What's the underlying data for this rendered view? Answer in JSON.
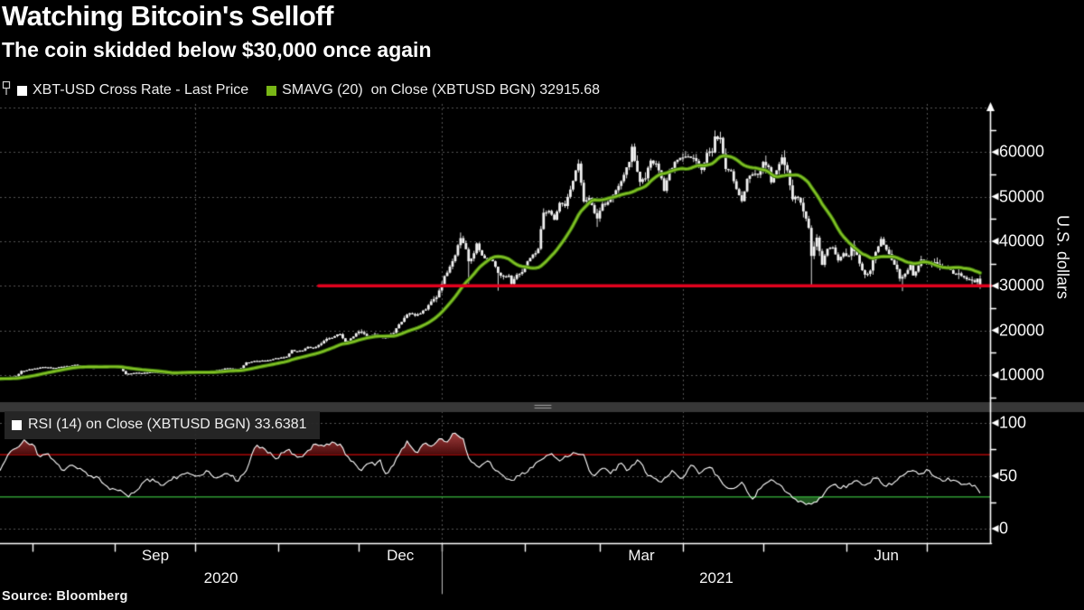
{
  "header": {
    "title": "Watching Bitcoin's Selloff",
    "subtitle": "The coin skidded below $30,000 once again"
  },
  "legend_main": {
    "series1": {
      "swatch_color": "#ffffff",
      "label": "XBT-USD Cross Rate - Last Price"
    },
    "series2": {
      "swatch_color": "#79b616",
      "label": "SMAVG (20)  on Close (XBTUSD BGN) 32915.68"
    }
  },
  "legend_rsi": {
    "swatch_color": "#ffffff",
    "label": "RSI (14)  on Close (XBTUSD BGN) 33.6381"
  },
  "y_axis": {
    "title": "U.S. dollars"
  },
  "source": "Source:  Bloomberg",
  "colors": {
    "background": "#000000",
    "candle": "#f2f2f2",
    "sma_core": "#85c426",
    "sma_edge": "#3f7a0e",
    "support_line": "#e0021e",
    "grid": "#555555",
    "axis": "#ffffff",
    "rsi_line": "#ffffff",
    "rsi_overbought_line": "#cf0a0a",
    "rsi_oversold_line": "#38b73c",
    "rsi_fill_top": "#c65252",
    "rsi_fill_bottom": "#4a0c0c",
    "rsi_fill_green": "rgba(60,170,60,0.5)",
    "separator": "#373737",
    "separator_grip": "#a0a0a0",
    "year_divider": "#c0c0c0"
  },
  "chart_data": [
    {
      "type": "candlestick",
      "name": "XBT-USD Cross Rate - Last Price",
      "x_range": [
        "2020-07-20",
        "2021-07-21"
      ],
      "ylabel": "U.S. dollars",
      "ylim": [
        3900,
        70800
      ],
      "y_ticks": [
        10000,
        20000,
        30000,
        40000,
        50000,
        60000
      ],
      "grid": "dotted",
      "support_line": {
        "value": 30000,
        "start_day": 119
      },
      "sma": {
        "period": 20,
        "last_value": 32915.68
      },
      "close_anchors": [
        [
          -20,
          9150
        ],
        [
          -10,
          9180
        ],
        [
          -3,
          9120
        ],
        [
          0,
          9160
        ],
        [
          4,
          9550
        ],
        [
          6,
          9700
        ],
        [
          8,
          10900
        ],
        [
          10,
          11050
        ],
        [
          12,
          11300
        ],
        [
          16,
          11780
        ],
        [
          20,
          11600
        ],
        [
          24,
          11850
        ],
        [
          28,
          12280
        ],
        [
          31,
          11900
        ],
        [
          34,
          11600
        ],
        [
          38,
          11700
        ],
        [
          43,
          11930
        ],
        [
          45,
          11400
        ],
        [
          47,
          10150
        ],
        [
          50,
          10450
        ],
        [
          53,
          10340
        ],
        [
          57,
          10700
        ],
        [
          61,
          10550
        ],
        [
          64,
          10250
        ],
        [
          67,
          10750
        ],
        [
          70,
          10840
        ],
        [
          73,
          10620
        ],
        [
          77,
          10570
        ],
        [
          80,
          10930
        ],
        [
          84,
          11420
        ],
        [
          88,
          11360
        ],
        [
          90,
          11500
        ],
        [
          92,
          12820
        ],
        [
          94,
          12980
        ],
        [
          97,
          13150
        ],
        [
          100,
          13270
        ],
        [
          102,
          13560
        ],
        [
          104,
          13750
        ],
        [
          107,
          14100
        ],
        [
          109,
          15600
        ],
        [
          111,
          15300
        ],
        [
          113,
          15480
        ],
        [
          115,
          16300
        ],
        [
          117,
          16070
        ],
        [
          119,
          16720
        ],
        [
          121,
          17650
        ],
        [
          123,
          18250
        ],
        [
          125,
          18700
        ],
        [
          127,
          19150
        ],
        [
          129,
          17150
        ],
        [
          131,
          18200
        ],
        [
          134,
          19700
        ],
        [
          136,
          19200
        ],
        [
          138,
          18650
        ],
        [
          140,
          19170
        ],
        [
          143,
          18250
        ],
        [
          145,
          18800
        ],
        [
          147,
          19450
        ],
        [
          149,
          21350
        ],
        [
          151,
          22800
        ],
        [
          153,
          23850
        ],
        [
          155,
          23300
        ],
        [
          157,
          23800
        ],
        [
          159,
          24700
        ],
        [
          161,
          26500
        ],
        [
          163,
          27400
        ],
        [
          164,
          28950
        ],
        [
          166,
          32200
        ],
        [
          168,
          34300
        ],
        [
          170,
          36850
        ],
        [
          172,
          40700
        ],
        [
          174,
          38200
        ],
        [
          175,
          35500
        ],
        [
          177,
          37300
        ],
        [
          178,
          39500
        ],
        [
          180,
          36800
        ],
        [
          182,
          36000
        ],
        [
          184,
          35500
        ],
        [
          186,
          32900
        ],
        [
          188,
          32100
        ],
        [
          190,
          32300
        ],
        [
          191,
          30400
        ],
        [
          193,
          32500
        ],
        [
          195,
          33100
        ],
        [
          197,
          35500
        ],
        [
          199,
          37000
        ],
        [
          201,
          38300
        ],
        [
          203,
          46400
        ],
        [
          205,
          46800
        ],
        [
          207,
          44800
        ],
        [
          209,
          48600
        ],
        [
          211,
          47900
        ],
        [
          213,
          51600
        ],
        [
          215,
          55900
        ],
        [
          216,
          57400
        ],
        [
          218,
          48900
        ],
        [
          220,
          49700
        ],
        [
          222,
          46300
        ],
        [
          223,
          45100
        ],
        [
          225,
          48400
        ],
        [
          227,
          48800
        ],
        [
          229,
          50400
        ],
        [
          231,
          52400
        ],
        [
          233,
          54900
        ],
        [
          235,
          57800
        ],
        [
          236,
          61200
        ],
        [
          238,
          55600
        ],
        [
          239,
          53300
        ],
        [
          241,
          54100
        ],
        [
          243,
          58100
        ],
        [
          245,
          57400
        ],
        [
          247,
          54100
        ],
        [
          248,
          51300
        ],
        [
          250,
          55800
        ],
        [
          252,
          57800
        ],
        [
          254,
          58700
        ],
        [
          256,
          59000
        ],
        [
          258,
          58700
        ],
        [
          260,
          58000
        ],
        [
          262,
          56000
        ],
        [
          264,
          59800
        ],
        [
          266,
          59900
        ],
        [
          267,
          63500
        ],
        [
          269,
          63200
        ],
        [
          271,
          56200
        ],
        [
          273,
          55700
        ],
        [
          275,
          51700
        ],
        [
          277,
          49000
        ],
        [
          279,
          54000
        ],
        [
          281,
          55000
        ],
        [
          283,
          54900
        ],
        [
          285,
          57800
        ],
        [
          287,
          56600
        ],
        [
          288,
          53200
        ],
        [
          290,
          55900
        ],
        [
          292,
          58800
        ],
        [
          294,
          55900
        ],
        [
          296,
          49400
        ],
        [
          298,
          49700
        ],
        [
          300,
          46700
        ],
        [
          302,
          43000
        ],
        [
          303,
          36700
        ],
        [
          305,
          40800
        ],
        [
          307,
          34700
        ],
        [
          309,
          38300
        ],
        [
          311,
          38600
        ],
        [
          313,
          35700
        ],
        [
          315,
          37300
        ],
        [
          317,
          36700
        ],
        [
          318,
          39200
        ],
        [
          320,
          36900
        ],
        [
          322,
          33500
        ],
        [
          323,
          32500
        ],
        [
          325,
          33400
        ],
        [
          327,
          37600
        ],
        [
          329,
          40500
        ],
        [
          331,
          38100
        ],
        [
          333,
          35800
        ],
        [
          335,
          33700
        ],
        [
          336,
          31600
        ],
        [
          338,
          32700
        ],
        [
          340,
          34700
        ],
        [
          341,
          32300
        ],
        [
          343,
          34500
        ],
        [
          344,
          35900
        ],
        [
          346,
          35000
        ],
        [
          348,
          34600
        ],
        [
          349,
          35300
        ],
        [
          351,
          33900
        ],
        [
          353,
          34200
        ],
        [
          354,
          33800
        ],
        [
          356,
          32700
        ],
        [
          358,
          32800
        ],
        [
          360,
          31900
        ],
        [
          362,
          31400
        ],
        [
          364,
          30800
        ],
        [
          365,
          31600
        ],
        [
          366,
          29750
        ]
      ],
      "wick_extremes": {
        "highs": [
          [
            172,
            41950
          ],
          [
            216,
            58350
          ],
          [
            236,
            61800
          ],
          [
            267,
            64850
          ],
          [
            292,
            59500
          ]
        ],
        "lows": [
          [
            175,
            30500
          ],
          [
            186,
            28900
          ],
          [
            223,
            43200
          ],
          [
            303,
            30000
          ],
          [
            337,
            28800
          ],
          [
            366,
            29300
          ]
        ]
      }
    },
    {
      "type": "line",
      "name": "RSI (14) on Close",
      "ylim": [
        0,
        100
      ],
      "y_ticks": [
        0,
        50,
        100
      ],
      "overbought": 70,
      "oversold": 30,
      "last_value": 33.6381,
      "points": [
        [
          0,
          55
        ],
        [
          3,
          70
        ],
        [
          6,
          76
        ],
        [
          9,
          84
        ],
        [
          12,
          80
        ],
        [
          15,
          68
        ],
        [
          18,
          71
        ],
        [
          21,
          62
        ],
        [
          24,
          55
        ],
        [
          27,
          60
        ],
        [
          30,
          57
        ],
        [
          34,
          50
        ],
        [
          37,
          48
        ],
        [
          40,
          40
        ],
        [
          44,
          36
        ],
        [
          48,
          30
        ],
        [
          51,
          36
        ],
        [
          54,
          45
        ],
        [
          57,
          47
        ],
        [
          61,
          41
        ],
        [
          64,
          46
        ],
        [
          67,
          50
        ],
        [
          70,
          53
        ],
        [
          74,
          50
        ],
        [
          78,
          54
        ],
        [
          81,
          48
        ],
        [
          85,
          52
        ],
        [
          89,
          45
        ],
        [
          92,
          55
        ],
        [
          94,
          70
        ],
        [
          96,
          79
        ],
        [
          99,
          75
        ],
        [
          101,
          72
        ],
        [
          103,
          66
        ],
        [
          106,
          72
        ],
        [
          108,
          75
        ],
        [
          110,
          70
        ],
        [
          112,
          68
        ],
        [
          115,
          74
        ],
        [
          118,
          80
        ],
        [
          121,
          78
        ],
        [
          124,
          82
        ],
        [
          127,
          80
        ],
        [
          129,
          70
        ],
        [
          131,
          64
        ],
        [
          133,
          60
        ],
        [
          135,
          55
        ],
        [
          138,
          62
        ],
        [
          140,
          60
        ],
        [
          142,
          65
        ],
        [
          144,
          52
        ],
        [
          146,
          58
        ],
        [
          149,
          70
        ],
        [
          152,
          83
        ],
        [
          154,
          76
        ],
        [
          156,
          72
        ],
        [
          158,
          80
        ],
        [
          161,
          78
        ],
        [
          163,
          82
        ],
        [
          165,
          85
        ],
        [
          167,
          82
        ],
        [
          169,
          90
        ],
        [
          171,
          88
        ],
        [
          173,
          85
        ],
        [
          175,
          67
        ],
        [
          177,
          62
        ],
        [
          179,
          58
        ],
        [
          182,
          64
        ],
        [
          185,
          55
        ],
        [
          188,
          50
        ],
        [
          192,
          46
        ],
        [
          194,
          50
        ],
        [
          196,
          52
        ],
        [
          199,
          58
        ],
        [
          202,
          65
        ],
        [
          206,
          71
        ],
        [
          209,
          64
        ],
        [
          212,
          68
        ],
        [
          214,
          72
        ],
        [
          218,
          70
        ],
        [
          220,
          55
        ],
        [
          222,
          50
        ],
        [
          225,
          57
        ],
        [
          228,
          52
        ],
        [
          232,
          62
        ],
        [
          234,
          55
        ],
        [
          238,
          65
        ],
        [
          240,
          60
        ],
        [
          242,
          50
        ],
        [
          245,
          47
        ],
        [
          247,
          44
        ],
        [
          251,
          55
        ],
        [
          253,
          50
        ],
        [
          255,
          48
        ],
        [
          258,
          60
        ],
        [
          261,
          52
        ],
        [
          265,
          58
        ],
        [
          268,
          50
        ],
        [
          270,
          42
        ],
        [
          274,
          38
        ],
        [
          277,
          44
        ],
        [
          280,
          31
        ],
        [
          281,
          28
        ],
        [
          284,
          38
        ],
        [
          286,
          43
        ],
        [
          289,
          45
        ],
        [
          292,
          40
        ],
        [
          294,
          34
        ],
        [
          297,
          28
        ],
        [
          299,
          26
        ],
        [
          302,
          24
        ],
        [
          304,
          25
        ],
        [
          307,
          30
        ],
        [
          310,
          40
        ],
        [
          312,
          42
        ],
        [
          314,
          38
        ],
        [
          317,
          42
        ],
        [
          319,
          45
        ],
        [
          323,
          41
        ],
        [
          327,
          48
        ],
        [
          331,
          40
        ],
        [
          334,
          44
        ],
        [
          337,
          50
        ],
        [
          341,
          55
        ],
        [
          344,
          52
        ],
        [
          347,
          55
        ],
        [
          350,
          48
        ],
        [
          352,
          45
        ],
        [
          354,
          48
        ],
        [
          356,
          46
        ],
        [
          358,
          44
        ],
        [
          360,
          42
        ],
        [
          362,
          43
        ],
        [
          364,
          41
        ],
        [
          366,
          33.6381
        ]
      ]
    }
  ],
  "x_axis": {
    "tick_days": [
      12,
      43,
      73,
      104,
      134,
      165,
      196,
      224,
      255,
      285,
      316,
      346
    ],
    "gridline_days": [
      73,
      165,
      255,
      346
    ],
    "year_divider_day": 165,
    "month_labels": [
      {
        "label": "Sep",
        "center_day": 58
      },
      {
        "label": "Dec",
        "center_day": 149.5
      },
      {
        "label": "Mar",
        "center_day": 239.5
      },
      {
        "label": "Jun",
        "center_day": 331
      }
    ],
    "year_labels": [
      {
        "label": "2020",
        "center_day": 82.5
      },
      {
        "label": "2021",
        "center_day": 267.5
      }
    ]
  }
}
